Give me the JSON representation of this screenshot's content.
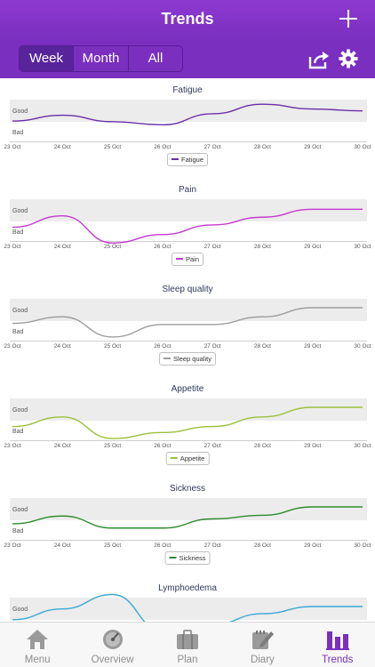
{
  "header": {
    "title": "Trends"
  },
  "period_tabs": [
    "Week",
    "Month",
    "All"
  ],
  "active_period": "Week",
  "x_ticks": [
    "23 Oct",
    "24 Oct",
    "25 Oct",
    "26 Oct",
    "27 Oct",
    "28 Oct",
    "29 Oct",
    "30 Oct"
  ],
  "axis_labels": {
    "good": "Good",
    "bad": "Bad"
  },
  "charts": [
    {
      "title": "Fatigue",
      "legend": "Fatigue",
      "color": "#6a2fa6"
    },
    {
      "title": "Pain",
      "legend": "Pain",
      "color": "#c33bd0"
    },
    {
      "title": "Sleep quality",
      "legend": "Sleep quality",
      "color": "#9e9e9e"
    },
    {
      "title": "Appetite",
      "legend": "Appetite",
      "color": "#9bc03b"
    },
    {
      "title": "Sickness",
      "legend": "Sickness",
      "color": "#2f8a2f"
    },
    {
      "title": "Lymphoedema",
      "legend": "Lymphoedema",
      "color": "#3aa8d6"
    }
  ],
  "chart_data": [
    {
      "type": "line",
      "title": "Fatigue",
      "x": [
        "23 Oct",
        "24 Oct",
        "25 Oct",
        "26 Oct",
        "27 Oct",
        "28 Oct",
        "29 Oct",
        "30 Oct"
      ],
      "series": [
        {
          "name": "Fatigue",
          "values": [
            0.48,
            0.72,
            0.45,
            0.32,
            0.78,
            1.18,
            0.98,
            0.9
          ]
        }
      ],
      "ylabel_top": "Good",
      "ylabel_bottom": "Bad"
    },
    {
      "type": "line",
      "title": "Pain",
      "x": [
        "23 Oct",
        "24 Oct",
        "25 Oct",
        "26 Oct",
        "27 Oct",
        "28 Oct",
        "29 Oct",
        "30 Oct"
      ],
      "series": [
        {
          "name": "Pain",
          "values": [
            0.2,
            0.68,
            -0.45,
            -0.1,
            0.3,
            0.62,
            0.95,
            0.95
          ]
        }
      ],
      "ylabel_top": "Good",
      "ylabel_bottom": "Bad"
    },
    {
      "type": "line",
      "title": "Sleep quality",
      "x": [
        "23 Oct",
        "24 Oct",
        "25 Oct",
        "26 Oct",
        "27 Oct",
        "28 Oct",
        "29 Oct",
        "30 Oct"
      ],
      "series": [
        {
          "name": "Sleep quality",
          "values": [
            0.35,
            0.62,
            -0.22,
            0.3,
            0.3,
            0.62,
            1.0,
            1.0
          ]
        }
      ],
      "ylabel_top": "Good",
      "ylabel_bottom": "Bad"
    },
    {
      "type": "line",
      "title": "Appetite",
      "x": [
        "23 Oct",
        "24 Oct",
        "25 Oct",
        "26 Oct",
        "27 Oct",
        "28 Oct",
        "29 Oct",
        "30 Oct"
      ],
      "series": [
        {
          "name": "Appetite",
          "values": [
            0.2,
            0.6,
            -0.3,
            -0.05,
            0.2,
            0.6,
            1.0,
            1.0
          ]
        }
      ],
      "ylabel_top": "Good",
      "ylabel_bottom": "Bad"
    },
    {
      "type": "line",
      "title": "Sickness",
      "x": [
        "23 Oct",
        "24 Oct",
        "25 Oct",
        "26 Oct",
        "27 Oct",
        "28 Oct",
        "29 Oct",
        "30 Oct"
      ],
      "series": [
        {
          "name": "Sickness",
          "values": [
            0.3,
            0.62,
            0.12,
            0.12,
            0.5,
            0.65,
            1.0,
            1.0
          ]
        }
      ],
      "ylabel_top": "Good",
      "ylabel_bottom": "Bad"
    },
    {
      "type": "line",
      "title": "Lymphoedema",
      "x": [
        "23 Oct",
        "24 Oct",
        "25 Oct",
        "26 Oct",
        "27 Oct",
        "28 Oct",
        "29 Oct",
        "30 Oct"
      ],
      "series": [
        {
          "name": "Lymphoedema",
          "values": [
            0.45,
            0.9,
            1.5,
            0.0,
            0.25,
            0.7,
            1.0,
            1.0
          ]
        }
      ],
      "ylabel_top": "Good",
      "ylabel_bottom": "Bad"
    }
  ],
  "tabbar": [
    {
      "label": "Menu",
      "icon": "home-icon"
    },
    {
      "label": "Overview",
      "icon": "gauge-icon"
    },
    {
      "label": "Plan",
      "icon": "briefcase-icon"
    },
    {
      "label": "Diary",
      "icon": "notepad-icon"
    },
    {
      "label": "Trends",
      "icon": "bar-chart-icon"
    }
  ],
  "active_tab": "Trends",
  "colors": {
    "accent": "#7a2fbf",
    "inactive": "#8e8e8e"
  }
}
